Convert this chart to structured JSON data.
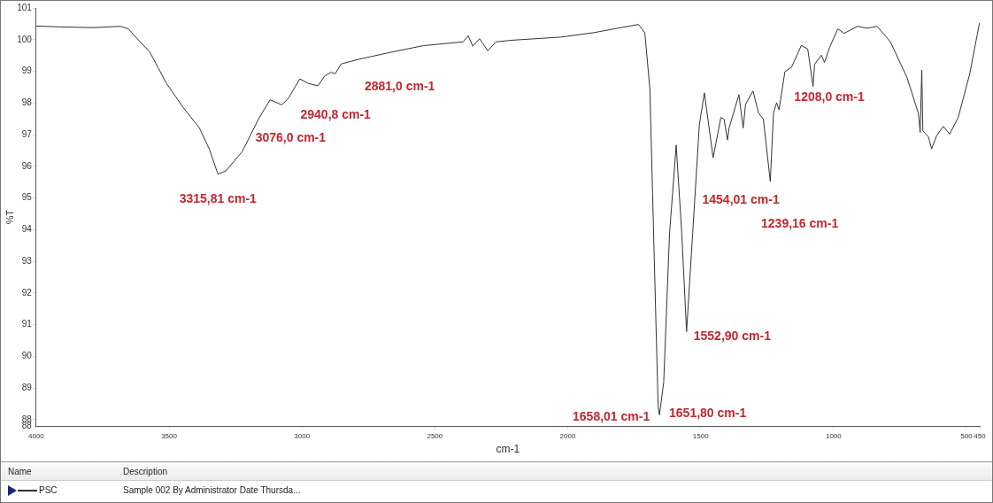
{
  "chart_data": {
    "type": "line",
    "xlabel": "cm-1",
    "ylabel": "%T",
    "x": [
      4000,
      3907,
      3783,
      3684,
      3653,
      3622,
      3572,
      3510,
      3448,
      3386,
      3349,
      3316,
      3287,
      3225,
      3163,
      3120,
      3076,
      3051,
      3008,
      2977,
      2940,
      2915,
      2890,
      2875,
      2853,
      2791,
      2667,
      2543,
      2394,
      2375,
      2357,
      2332,
      2301,
      2270,
      2212,
      2026,
      1903,
      1734,
      1710,
      1691,
      1677,
      1660,
      1655,
      1639,
      1617,
      1592,
      1571,
      1553,
      1530,
      1505,
      1486,
      1453,
      1424,
      1412,
      1399,
      1393,
      1356,
      1340,
      1331,
      1303,
      1282,
      1264,
      1238,
      1226,
      1214,
      1205,
      1183,
      1158,
      1121,
      1097,
      1077,
      1071,
      1046,
      1034,
      1015,
      984,
      960,
      910,
      873,
      836,
      786,
      724,
      681,
      674,
      668,
      664,
      643,
      631,
      612,
      587,
      563,
      531,
      488,
      451
    ],
    "series": [
      {
        "name": "PSC",
        "color": "#333333",
        "values": [
          100.43,
          100.4,
          100.38,
          100.42,
          100.34,
          100.05,
          99.6,
          98.62,
          97.87,
          97.21,
          96.55,
          95.75,
          95.85,
          96.46,
          97.5,
          98.1,
          97.94,
          98.15,
          98.76,
          98.62,
          98.54,
          98.85,
          98.97,
          98.92,
          99.23,
          99.37,
          99.6,
          99.81,
          99.93,
          100.12,
          99.79,
          100.03,
          99.65,
          99.93,
          99.98,
          100.08,
          100.22,
          100.48,
          100.22,
          98.43,
          93.9,
          88.43,
          88.15,
          89.18,
          93.88,
          96.67,
          93.88,
          90.78,
          93.88,
          97.3,
          98.32,
          96.27,
          97.54,
          97.49,
          96.83,
          97.21,
          98.26,
          97.21,
          97.96,
          98.38,
          97.68,
          97.49,
          95.52,
          97.68,
          98.01,
          97.78,
          98.99,
          99.13,
          99.82,
          99.7,
          98.52,
          99.23,
          99.51,
          99.28,
          99.75,
          100.34,
          100.2,
          100.42,
          100.36,
          100.42,
          99.93,
          98.81,
          97.68,
          97.07,
          99.04,
          97.12,
          96.93,
          96.55,
          96.97,
          97.26,
          97.02,
          97.54,
          98.9,
          100.52
        ]
      }
    ],
    "xlim": [
      4000,
      450
    ],
    "xticks": [
      4000,
      3500,
      3000,
      2500,
      2000,
      1500,
      1000,
      500,
      450
    ],
    "ylim": [
      87.8,
      101
    ],
    "yticks": [
      {
        "value": 87.8,
        "label": "88"
      },
      88,
      89,
      90,
      91,
      92,
      93,
      94,
      95,
      96,
      97,
      98,
      99,
      100,
      101
    ],
    "grid": false,
    "legend": "bottom",
    "marker": "none",
    "line_style": "solid",
    "annotations": [
      {
        "text": "3315,81 cm-1",
        "x": 3316,
        "y": 95.75
      },
      {
        "text": "3076,0 cm-1",
        "x": 3076,
        "y": 97.94
      },
      {
        "text": "2940,8 cm-1",
        "x": 2940,
        "y": 98.54
      },
      {
        "text": "2881,0 cm-1",
        "x": 2881,
        "y": 98.92
      },
      {
        "text": "1658,01 cm-1",
        "x": 1658,
        "y": 88.3
      },
      {
        "text": "1651,80 cm-1",
        "x": 1652,
        "y": 88.2
      },
      {
        "text": "1552,90 cm-1",
        "x": 1553,
        "y": 90.78
      },
      {
        "text": "1454,01 cm-1",
        "x": 1454,
        "y": 96.27
      },
      {
        "text": "1239,16 cm-1",
        "x": 1239,
        "y": 95.52
      },
      {
        "text": "1208,0 cm-1",
        "x": 1208,
        "y": 97.78
      },
      "Name",
      "Description",
      "Sample 002 By Administrator Date Thursda..."
    ]
  }
}
